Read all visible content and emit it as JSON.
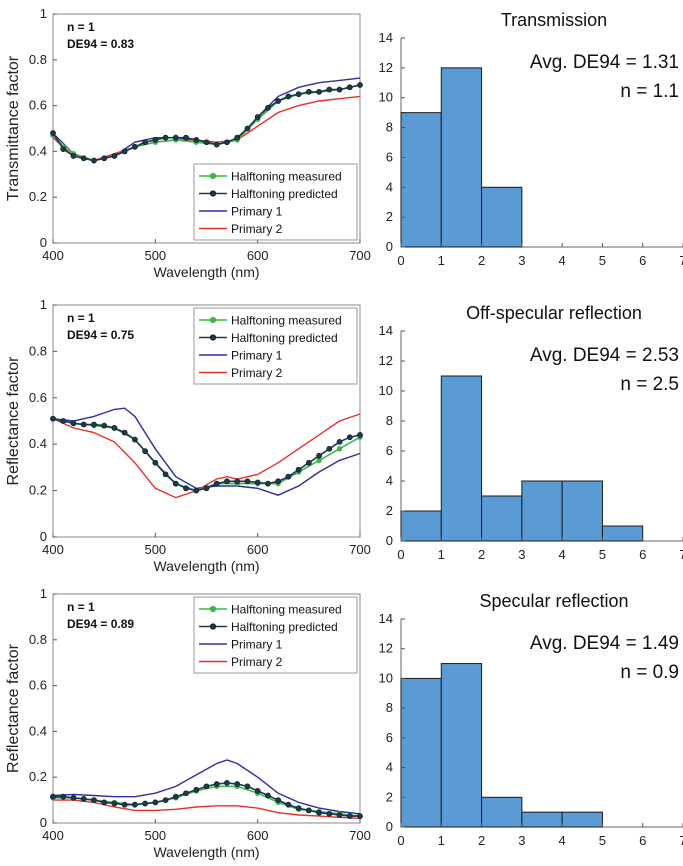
{
  "chart_data": [
    {
      "type": "line",
      "ylabel": "Transmittance factor",
      "xlabel": "Wavelength (nm)",
      "xlim": [
        400,
        700
      ],
      "ylim": [
        0,
        1
      ],
      "xticks": [
        "400",
        "500",
        "600",
        "700"
      ],
      "yticks": [
        "0",
        "0.2",
        "0.4",
        "0.6",
        "0.8",
        "1"
      ],
      "annotations": [
        "n = 1",
        "DE94 = 0.83"
      ],
      "legend_position": "bottom-right",
      "series": [
        {
          "name": "Halftoning measured",
          "color": "#3cb54a",
          "marker": "dot",
          "x": [
            400,
            420,
            440,
            460,
            480,
            500,
            520,
            540,
            560,
            580,
            600,
            620,
            640,
            660,
            680,
            700
          ],
          "y": [
            0.47,
            0.39,
            0.36,
            0.38,
            0.42,
            0.44,
            0.45,
            0.44,
            0.43,
            0.45,
            0.54,
            0.62,
            0.65,
            0.66,
            0.67,
            0.69
          ]
        },
        {
          "name": "Halftoning predicted",
          "color": "#1e3a4a",
          "marker": "dot",
          "x": [
            400,
            410,
            420,
            430,
            440,
            450,
            460,
            470,
            480,
            490,
            500,
            510,
            520,
            530,
            540,
            550,
            560,
            570,
            580,
            590,
            600,
            610,
            620,
            630,
            640,
            650,
            660,
            670,
            680,
            690,
            700
          ],
          "y": [
            0.48,
            0.41,
            0.38,
            0.37,
            0.36,
            0.37,
            0.38,
            0.4,
            0.42,
            0.44,
            0.45,
            0.46,
            0.46,
            0.46,
            0.45,
            0.44,
            0.43,
            0.44,
            0.46,
            0.5,
            0.55,
            0.59,
            0.62,
            0.64,
            0.65,
            0.66,
            0.66,
            0.67,
            0.67,
            0.68,
            0.69
          ]
        },
        {
          "name": "Primary 1",
          "color": "#2e2ea0",
          "marker": "none",
          "x": [
            400,
            420,
            440,
            460,
            480,
            500,
            520,
            540,
            560,
            580,
            600,
            620,
            640,
            660,
            680,
            700
          ],
          "y": [
            0.48,
            0.39,
            0.36,
            0.38,
            0.44,
            0.46,
            0.46,
            0.45,
            0.43,
            0.45,
            0.55,
            0.64,
            0.68,
            0.7,
            0.71,
            0.72
          ]
        },
        {
          "name": "Primary 2",
          "color": "#e8302b",
          "marker": "none",
          "x": [
            400,
            420,
            440,
            460,
            480,
            500,
            520,
            540,
            560,
            580,
            600,
            620,
            640,
            660,
            680,
            700
          ],
          "y": [
            0.46,
            0.38,
            0.36,
            0.39,
            0.42,
            0.44,
            0.45,
            0.45,
            0.44,
            0.45,
            0.51,
            0.57,
            0.6,
            0.62,
            0.63,
            0.64
          ]
        }
      ]
    },
    {
      "type": "bar",
      "title": "Transmission",
      "annotations": [
        "Avg. DE94 = 1.31",
        "n = 1.1"
      ],
      "xticks": [
        "0",
        "1",
        "2",
        "3",
        "4",
        "5",
        "6",
        "7"
      ],
      "yticks": [
        "0",
        "2",
        "4",
        "6",
        "8",
        "10",
        "12",
        "14"
      ],
      "xlim": [
        0,
        7
      ],
      "ylim": [
        0,
        14
      ],
      "bar_color": "#5b9bd5",
      "bins": [
        {
          "start": 0,
          "end": 1,
          "count": 9
        },
        {
          "start": 1,
          "end": 2,
          "count": 12
        },
        {
          "start": 2,
          "end": 3,
          "count": 4
        }
      ]
    },
    {
      "type": "line",
      "ylabel": "Reflectance factor",
      "xlabel": "Wavelength (nm)",
      "xlim": [
        400,
        700
      ],
      "ylim": [
        0,
        1
      ],
      "xticks": [
        "400",
        "500",
        "600",
        "700"
      ],
      "yticks": [
        "0",
        "0.2",
        "0.4",
        "0.6",
        "0.8",
        "1"
      ],
      "annotations": [
        "n = 1",
        "DE94 = 0.75"
      ],
      "legend_position": "top-right",
      "series": [
        {
          "name": "Halftoning measured",
          "color": "#3cb54a",
          "marker": "dot",
          "x": [
            400,
            420,
            440,
            460,
            480,
            500,
            520,
            540,
            560,
            580,
            600,
            620,
            640,
            660,
            680,
            700
          ],
          "y": [
            0.51,
            0.49,
            0.48,
            0.47,
            0.42,
            0.32,
            0.23,
            0.2,
            0.23,
            0.23,
            0.23,
            0.23,
            0.28,
            0.33,
            0.38,
            0.43
          ]
        },
        {
          "name": "Halftoning predicted",
          "color": "#1e3a4a",
          "marker": "dot",
          "x": [
            400,
            410,
            420,
            430,
            440,
            450,
            460,
            470,
            480,
            490,
            500,
            510,
            520,
            530,
            540,
            550,
            560,
            570,
            580,
            590,
            600,
            610,
            620,
            630,
            640,
            650,
            660,
            670,
            680,
            690,
            700
          ],
          "y": [
            0.51,
            0.5,
            0.49,
            0.485,
            0.485,
            0.48,
            0.47,
            0.45,
            0.42,
            0.37,
            0.32,
            0.27,
            0.23,
            0.21,
            0.2,
            0.21,
            0.23,
            0.24,
            0.24,
            0.24,
            0.235,
            0.23,
            0.24,
            0.26,
            0.29,
            0.32,
            0.35,
            0.38,
            0.41,
            0.43,
            0.44
          ]
        },
        {
          "name": "Primary 1",
          "color": "#2e2ea0",
          "marker": "none",
          "x": [
            400,
            420,
            440,
            460,
            470,
            480,
            500,
            520,
            540,
            560,
            580,
            600,
            620,
            640,
            660,
            680,
            700
          ],
          "y": [
            0.51,
            0.5,
            0.52,
            0.55,
            0.555,
            0.52,
            0.38,
            0.26,
            0.21,
            0.22,
            0.22,
            0.21,
            0.18,
            0.22,
            0.28,
            0.33,
            0.36
          ]
        },
        {
          "name": "Primary 2",
          "color": "#e8302b",
          "marker": "none",
          "x": [
            400,
            420,
            440,
            460,
            480,
            500,
            520,
            540,
            560,
            570,
            580,
            600,
            620,
            640,
            660,
            680,
            700
          ],
          "y": [
            0.51,
            0.47,
            0.45,
            0.41,
            0.32,
            0.21,
            0.17,
            0.2,
            0.25,
            0.26,
            0.25,
            0.27,
            0.32,
            0.38,
            0.44,
            0.5,
            0.53
          ]
        }
      ]
    },
    {
      "type": "bar",
      "title": "Off-specular reflection",
      "annotations": [
        "Avg. DE94 = 2.53",
        "n = 2.5"
      ],
      "xticks": [
        "0",
        "1",
        "2",
        "3",
        "4",
        "5",
        "6",
        "7"
      ],
      "yticks": [
        "0",
        "2",
        "4",
        "6",
        "8",
        "10",
        "12",
        "14"
      ],
      "xlim": [
        0,
        7
      ],
      "ylim": [
        0,
        14
      ],
      "bar_color": "#5b9bd5",
      "bins": [
        {
          "start": 0,
          "end": 1,
          "count": 2
        },
        {
          "start": 1,
          "end": 2,
          "count": 11
        },
        {
          "start": 2,
          "end": 3,
          "count": 3
        },
        {
          "start": 3,
          "end": 4,
          "count": 4
        },
        {
          "start": 4,
          "end": 5,
          "count": 4
        },
        {
          "start": 5,
          "end": 6,
          "count": 1
        }
      ]
    },
    {
      "type": "line",
      "ylabel": "Reflectance factor",
      "xlabel": "Wavelength (nm)",
      "xlim": [
        400,
        700
      ],
      "ylim": [
        0,
        1
      ],
      "xticks": [
        "400",
        "500",
        "600",
        "700"
      ],
      "yticks": [
        "0",
        "0.2",
        "0.4",
        "0.6",
        "0.8",
        "1"
      ],
      "annotations": [
        "n = 1",
        "DE94 = 0.89"
      ],
      "legend_position": "top-right",
      "series": [
        {
          "name": "Halftoning measured",
          "color": "#3cb54a",
          "marker": "dot",
          "x": [
            400,
            420,
            440,
            460,
            480,
            500,
            520,
            540,
            560,
            580,
            600,
            620,
            640,
            660,
            680,
            700
          ],
          "y": [
            0.11,
            0.11,
            0.1,
            0.09,
            0.08,
            0.09,
            0.11,
            0.14,
            0.16,
            0.16,
            0.13,
            0.09,
            0.06,
            0.05,
            0.04,
            0.03
          ]
        },
        {
          "name": "Halftoning predicted",
          "color": "#1e3a4a",
          "marker": "dot",
          "x": [
            400,
            410,
            420,
            430,
            440,
            450,
            460,
            470,
            480,
            490,
            500,
            510,
            520,
            530,
            540,
            550,
            560,
            570,
            580,
            590,
            600,
            610,
            620,
            630,
            640,
            650,
            660,
            670,
            680,
            690,
            700
          ],
          "y": [
            0.115,
            0.115,
            0.11,
            0.105,
            0.1,
            0.09,
            0.085,
            0.08,
            0.08,
            0.085,
            0.09,
            0.1,
            0.115,
            0.13,
            0.145,
            0.16,
            0.17,
            0.175,
            0.17,
            0.16,
            0.14,
            0.12,
            0.1,
            0.08,
            0.065,
            0.055,
            0.045,
            0.04,
            0.035,
            0.03,
            0.03
          ]
        },
        {
          "name": "Primary 1",
          "color": "#2e2ea0",
          "marker": "none",
          "x": [
            400,
            420,
            440,
            460,
            480,
            500,
            520,
            540,
            560,
            570,
            580,
            600,
            620,
            640,
            660,
            680,
            700
          ],
          "y": [
            0.12,
            0.125,
            0.12,
            0.115,
            0.115,
            0.13,
            0.16,
            0.21,
            0.26,
            0.275,
            0.26,
            0.2,
            0.13,
            0.09,
            0.065,
            0.05,
            0.04
          ]
        },
        {
          "name": "Primary 2",
          "color": "#e8302b",
          "marker": "none",
          "x": [
            400,
            420,
            440,
            460,
            480,
            500,
            520,
            540,
            560,
            580,
            600,
            620,
            640,
            660,
            680,
            700
          ],
          "y": [
            0.1,
            0.1,
            0.09,
            0.07,
            0.055,
            0.055,
            0.06,
            0.07,
            0.075,
            0.075,
            0.065,
            0.045,
            0.035,
            0.03,
            0.025,
            0.02
          ]
        }
      ]
    },
    {
      "type": "bar",
      "title": "Specular reflection",
      "annotations": [
        "Avg. DE94 = 1.49",
        "n = 0.9"
      ],
      "xticks": [
        "0",
        "1",
        "2",
        "3",
        "4",
        "5",
        "6",
        "7"
      ],
      "yticks": [
        "0",
        "2",
        "4",
        "6",
        "8",
        "10",
        "12",
        "14"
      ],
      "xlim": [
        0,
        7
      ],
      "ylim": [
        0,
        14
      ],
      "bar_color": "#5b9bd5",
      "bins": [
        {
          "start": 0,
          "end": 1,
          "count": 10
        },
        {
          "start": 1,
          "end": 2,
          "count": 11
        },
        {
          "start": 2,
          "end": 3,
          "count": 2
        },
        {
          "start": 3,
          "end": 4,
          "count": 1
        },
        {
          "start": 4,
          "end": 5,
          "count": 1
        }
      ]
    }
  ]
}
